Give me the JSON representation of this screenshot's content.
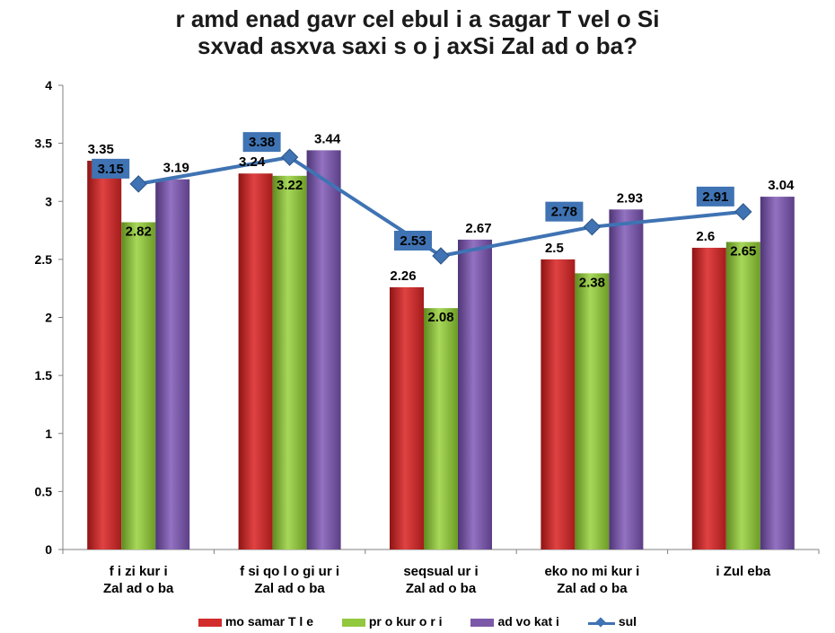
{
  "chart_data": {
    "type": "bar",
    "title_lines": [
      "r amd enad gavr cel ebul i a sagar T vel o Si",
      "sxvad asxva saxi s o j axSi Zal ad o ba?"
    ],
    "categories": [
      [
        "f i zi kur i",
        "Zal ad o ba"
      ],
      [
        "f si qo l o gi ur i",
        "Zal ad o ba"
      ],
      [
        "seqsual ur i",
        "Zal ad o ba"
      ],
      [
        "eko no mi kur i",
        "Zal ad o ba"
      ],
      [
        "i Zul eba",
        ""
      ]
    ],
    "series": [
      {
        "name": "mo samar T l e",
        "color": "#d22b2b",
        "values": [
          3.35,
          3.24,
          2.26,
          2.5,
          2.6
        ]
      },
      {
        "name": "pr o kur o r i",
        "color": "#92c83e",
        "values": [
          2.82,
          3.22,
          2.08,
          2.38,
          2.65
        ]
      },
      {
        "name": "ad vo kat i",
        "color": "#7b58a8",
        "values": [
          3.19,
          3.44,
          2.67,
          2.93,
          3.04
        ]
      }
    ],
    "line_series": {
      "name": "sul",
      "color": "#3f73b3",
      "values": [
        3.15,
        3.38,
        2.53,
        2.78,
        2.91
      ]
    },
    "ylim": [
      0,
      4
    ],
    "yticks": [
      "0",
      "0.5",
      "1",
      "1.5",
      "2",
      "2.5",
      "3",
      "3.5",
      "4"
    ],
    "legend_position": "bottom",
    "grid": false
  }
}
